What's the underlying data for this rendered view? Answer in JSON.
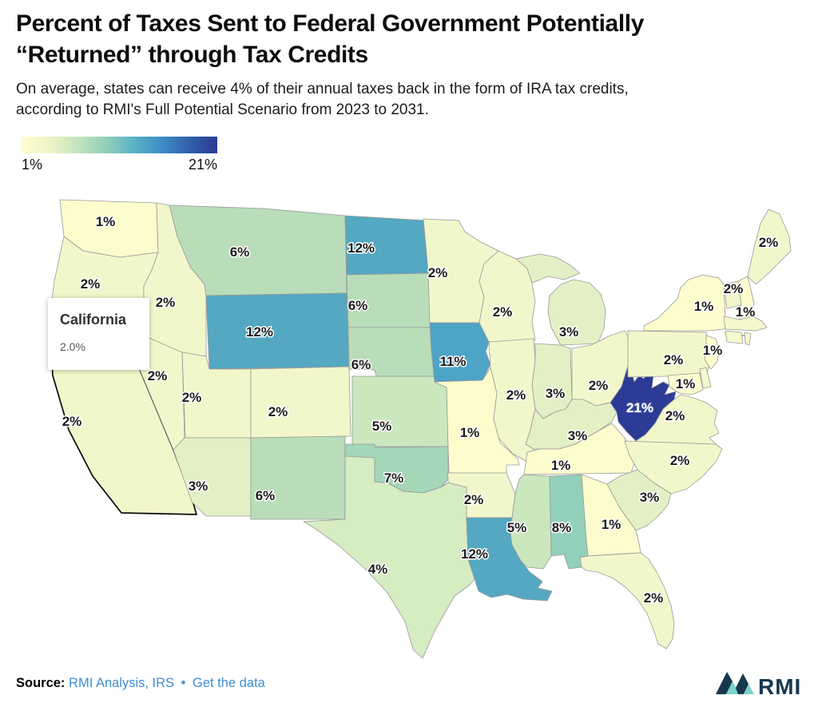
{
  "header": {
    "title_line1": "Percent of Taxes Sent to Federal Government Potentially",
    "title_line2": "“Returned” through Tax Credits",
    "subtitle_line1": "On average, states can receive 4% of their annual taxes back in the form of IRA tax credits,",
    "subtitle_line2": "according to RMI's Full Potential Scenario from 2023 to 2031."
  },
  "legend": {
    "min_label": "1%",
    "max_label": "21%",
    "gradient_stops": [
      "#fdfdd0",
      "#eef5c8",
      "#c5e4bd",
      "#93d0ba",
      "#5bb3c6",
      "#3f8ec6",
      "#3160aa",
      "#2b3b96"
    ]
  },
  "tooltip": {
    "state": "California",
    "value": "2.0%"
  },
  "source": {
    "prefix": "Source:",
    "link1": "RMI Analysis, IRS",
    "separator": "•",
    "link2": "Get the data"
  },
  "logo": {
    "text": "RMI",
    "navy": "#16384f",
    "teal": "#7ad1ca"
  },
  "chart_data": {
    "type": "choropleth-map",
    "region": "United States (lower 48)",
    "title": "Percent of Taxes Sent to Federal Government Potentially “Returned” through Tax Credits",
    "unit": "%",
    "domain": [
      1,
      21
    ],
    "legend": {
      "min": "1%",
      "max": "21%"
    },
    "highlighted_state": "California",
    "tooltip": {
      "state": "California",
      "value": "2.0%"
    },
    "value_colors": {
      "1": "#fcfccd",
      "2": "#f2f7cb",
      "3": "#e3f0c5",
      "4": "#d6ecc1",
      "5": "#cbe7be",
      "6": "#b9ddb9",
      "7": "#a4d6b8",
      "8": "#93d0ba",
      "11": "#4da4c6",
      "12": "#55a8c1",
      "21": "#2b3b96"
    },
    "no_data_color": "#f5f8cd",
    "states": [
      {
        "id": "WA",
        "name": "Washington",
        "value": 1,
        "label": "1%"
      },
      {
        "id": "OR",
        "name": "Oregon",
        "value": 2,
        "label": "2%"
      },
      {
        "id": "CA",
        "name": "California",
        "value": 2,
        "label": "2%"
      },
      {
        "id": "ID",
        "name": "Idaho",
        "value": 2,
        "label": "2%"
      },
      {
        "id": "NV",
        "name": "Nevada",
        "value": 2,
        "label": "2%"
      },
      {
        "id": "MT",
        "name": "Montana",
        "value": 6,
        "label": "6%"
      },
      {
        "id": "WY",
        "name": "Wyoming",
        "value": 12,
        "label": "12%"
      },
      {
        "id": "UT",
        "name": "Utah",
        "value": 2,
        "label": "2%"
      },
      {
        "id": "CO",
        "name": "Colorado",
        "value": 2,
        "label": "2%"
      },
      {
        "id": "AZ",
        "name": "Arizona",
        "value": 3,
        "label": "3%"
      },
      {
        "id": "NM",
        "name": "New Mexico",
        "value": 6,
        "label": "6%"
      },
      {
        "id": "ND",
        "name": "North Dakota",
        "value": 12,
        "label": "12%"
      },
      {
        "id": "SD",
        "name": "South Dakota",
        "value": 6,
        "label": "6%"
      },
      {
        "id": "NE",
        "name": "Nebraska",
        "value": 6,
        "label": "6%"
      },
      {
        "id": "KS",
        "name": "Kansas",
        "value": 5,
        "label": "5%"
      },
      {
        "id": "OK",
        "name": "Oklahoma",
        "value": 7,
        "label": "7%"
      },
      {
        "id": "TX",
        "name": "Texas",
        "value": 4,
        "label": "4%"
      },
      {
        "id": "MN",
        "name": "Minnesota",
        "value": 2,
        "label": "2%"
      },
      {
        "id": "IA",
        "name": "Iowa",
        "value": 11,
        "label": "11%"
      },
      {
        "id": "MO",
        "name": "Missouri",
        "value": 1,
        "label": "1%"
      },
      {
        "id": "AR",
        "name": "Arkansas",
        "value": 2,
        "label": "2%"
      },
      {
        "id": "LA",
        "name": "Louisiana",
        "value": 12,
        "label": "12%"
      },
      {
        "id": "WI",
        "name": "Wisconsin",
        "value": 2,
        "label": "2%"
      },
      {
        "id": "MI",
        "name": "Michigan",
        "value": 3,
        "label": "3%"
      },
      {
        "id": "IL",
        "name": "Illinois",
        "value": 2,
        "label": "2%"
      },
      {
        "id": "IN",
        "name": "Indiana",
        "value": 3,
        "label": "3%"
      },
      {
        "id": "OH",
        "name": "Ohio",
        "value": 2,
        "label": "2%"
      },
      {
        "id": "KY",
        "name": "Kentucky",
        "value": 3,
        "label": "3%"
      },
      {
        "id": "TN",
        "name": "Tennessee",
        "value": 1,
        "label": "1%"
      },
      {
        "id": "WV",
        "name": "West Virginia",
        "value": 21,
        "label": "21%"
      },
      {
        "id": "VA",
        "name": "Virginia",
        "value": 2,
        "label": "2%"
      },
      {
        "id": "NC",
        "name": "North Carolina",
        "value": 2,
        "label": "2%"
      },
      {
        "id": "SC",
        "name": "South Carolina",
        "value": 3,
        "label": "3%"
      },
      {
        "id": "GA",
        "name": "Georgia",
        "value": 1,
        "label": "1%"
      },
      {
        "id": "AL",
        "name": "Alabama",
        "value": 8,
        "label": "8%"
      },
      {
        "id": "MS",
        "name": "Mississippi",
        "value": 5,
        "label": "5%"
      },
      {
        "id": "FL",
        "name": "Florida",
        "value": 2,
        "label": "2%"
      },
      {
        "id": "PA",
        "name": "Pennsylvania",
        "value": 2,
        "label": "2%"
      },
      {
        "id": "NY",
        "name": "New York",
        "value": 1,
        "label": "1%"
      },
      {
        "id": "NJ",
        "name": "New Jersey",
        "value": 1,
        "label": "1%"
      },
      {
        "id": "MD",
        "name": "Maryland",
        "value": 1,
        "label": "1%"
      },
      {
        "id": "DE",
        "name": "Delaware",
        "value": null,
        "label": ""
      },
      {
        "id": "VT",
        "name": "Vermont",
        "value": 2,
        "label": "2%"
      },
      {
        "id": "NH",
        "name": "New Hampshire",
        "value": 1,
        "label": "1%"
      },
      {
        "id": "ME",
        "name": "Maine",
        "value": 2,
        "label": "2%"
      },
      {
        "id": "MA",
        "name": "Massachusetts",
        "value": null,
        "label": ""
      },
      {
        "id": "CT",
        "name": "Connecticut",
        "value": null,
        "label": ""
      },
      {
        "id": "RI",
        "name": "Rhode Island",
        "value": null,
        "label": ""
      }
    ]
  }
}
